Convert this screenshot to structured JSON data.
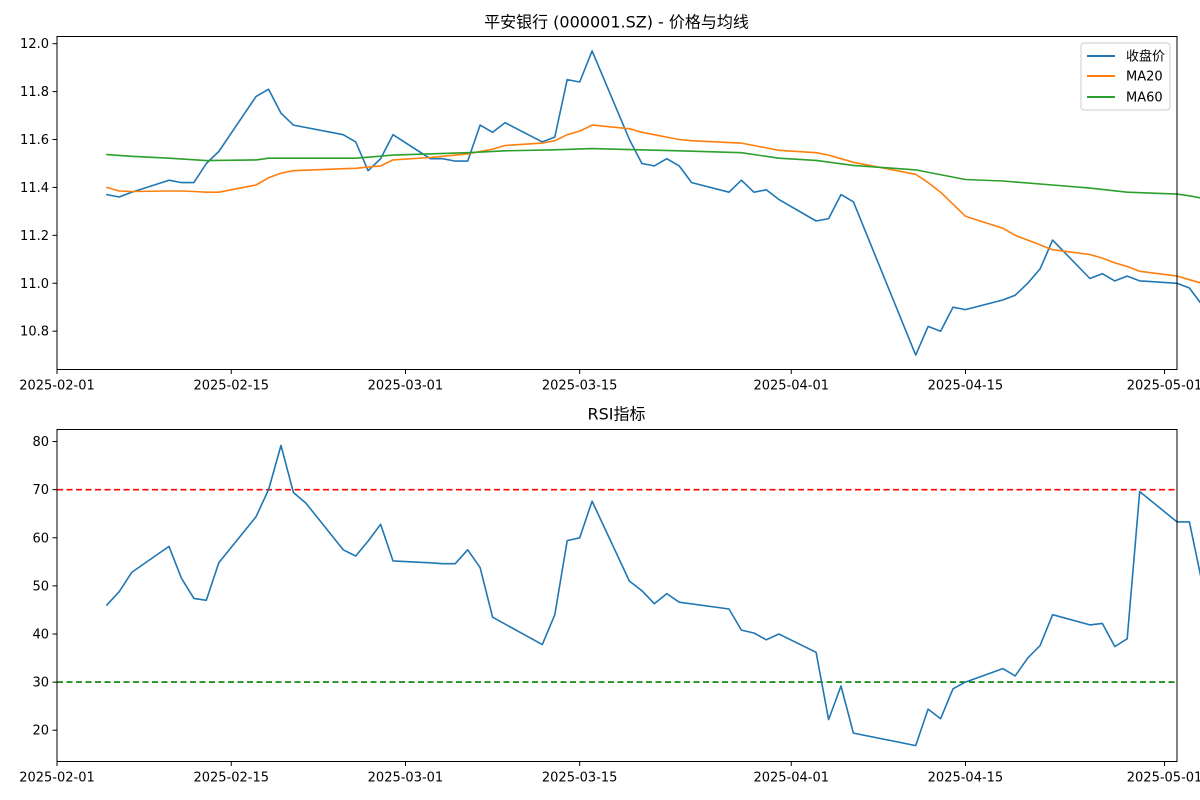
{
  "chart_data": [
    {
      "type": "line",
      "title": "平安银行 (000001.SZ) - 价格与均线",
      "xlabel": "",
      "ylabel": "",
      "x_axis_type": "date",
      "xlim": [
        "2025-02-01",
        "2025-05-02"
      ],
      "ylim": [
        10.64,
        12.03
      ],
      "x_ticks": [
        "2025-02-01",
        "2025-02-15",
        "2025-03-01",
        "2025-03-15",
        "2025-04-01",
        "2025-04-15",
        "2025-05-01"
      ],
      "y_ticks": [
        10.8,
        11.0,
        11.2,
        11.4,
        11.6,
        11.8,
        12.0
      ],
      "y_tick_labels": [
        "10.8",
        "11.0",
        "11.2",
        "11.4",
        "11.6",
        "11.8",
        "12.0"
      ],
      "grid": false,
      "legend_position": "top-right",
      "series": [
        {
          "name": "收盘价",
          "color": "#1f77b4",
          "points": [
            [
              "2025-02-05",
              11.37
            ],
            [
              "2025-02-06",
              11.36
            ],
            [
              "2025-02-07",
              11.38
            ],
            [
              "2025-02-10",
              11.43
            ],
            [
              "2025-02-11",
              11.42
            ],
            [
              "2025-02-12",
              11.42
            ],
            [
              "2025-02-13",
              11.5
            ],
            [
              "2025-02-14",
              11.55
            ],
            [
              "2025-02-17",
              11.78
            ],
            [
              "2025-02-18",
              11.81
            ],
            [
              "2025-02-19",
              11.71
            ],
            [
              "2025-02-20",
              11.66
            ],
            [
              "2025-02-21",
              11.65
            ],
            [
              "2025-02-24",
              11.62
            ],
            [
              "2025-02-25",
              11.59
            ],
            [
              "2025-02-26",
              11.47
            ],
            [
              "2025-02-27",
              11.52
            ],
            [
              "2025-02-28",
              11.62
            ],
            [
              "2025-03-03",
              11.52
            ],
            [
              "2025-03-04",
              11.52
            ],
            [
              "2025-03-05",
              11.51
            ],
            [
              "2025-03-06",
              11.51
            ],
            [
              "2025-03-07",
              11.66
            ],
            [
              "2025-03-08",
              11.63
            ],
            [
              "2025-03-09",
              11.67
            ],
            [
              "2025-03-12",
              11.59
            ],
            [
              "2025-03-13",
              11.61
            ],
            [
              "2025-03-14",
              11.85
            ],
            [
              "2025-03-15",
              11.84
            ],
            [
              "2025-03-16",
              11.97
            ],
            [
              "2025-03-19",
              11.6
            ],
            [
              "2025-03-20",
              11.5
            ],
            [
              "2025-03-21",
              11.49
            ],
            [
              "2025-03-22",
              11.52
            ],
            [
              "2025-03-23",
              11.49
            ],
            [
              "2025-03-24",
              11.42
            ],
            [
              "2025-03-27",
              11.38
            ],
            [
              "2025-03-28",
              11.43
            ],
            [
              "2025-03-29",
              11.38
            ],
            [
              "2025-03-30",
              11.39
            ],
            [
              "2025-03-31",
              11.35
            ],
            [
              "2025-04-03",
              11.26
            ],
            [
              "2025-04-04",
              11.27
            ],
            [
              "2025-04-05",
              11.37
            ],
            [
              "2025-04-06",
              11.34
            ],
            [
              "2025-04-11",
              10.7
            ],
            [
              "2025-04-12",
              10.82
            ],
            [
              "2025-04-13",
              10.8
            ],
            [
              "2025-04-14",
              10.9
            ],
            [
              "2025-04-15",
              10.89
            ],
            [
              "2025-04-18",
              10.93
            ],
            [
              "2025-04-19",
              10.95
            ],
            [
              "2025-04-20",
              11.0
            ],
            [
              "2025-04-21",
              11.06
            ],
            [
              "2025-04-22",
              11.18
            ],
            [
              "2025-04-25",
              11.02
            ],
            [
              "2025-04-26",
              11.04
            ],
            [
              "2025-04-27",
              11.01
            ],
            [
              "2025-04-28",
              11.03
            ],
            [
              "2025-04-29",
              11.01
            ],
            [
              "2025-05-02",
              11.0
            ],
            [
              "2025-05-03",
              10.98
            ],
            [
              "2025-05-04",
              10.91
            ]
          ]
        },
        {
          "name": "MA20",
          "color": "#ff7f0e",
          "points": [
            [
              "2025-02-05",
              11.4
            ],
            [
              "2025-02-06",
              11.385
            ],
            [
              "2025-02-07",
              11.383
            ],
            [
              "2025-02-10",
              11.385
            ],
            [
              "2025-02-11",
              11.385
            ],
            [
              "2025-02-12",
              11.383
            ],
            [
              "2025-02-13",
              11.38
            ],
            [
              "2025-02-14",
              11.38
            ],
            [
              "2025-02-17",
              11.41
            ],
            [
              "2025-02-18",
              11.44
            ],
            [
              "2025-02-19",
              11.46
            ],
            [
              "2025-02-20",
              11.47
            ],
            [
              "2025-02-21",
              11.472
            ],
            [
              "2025-02-24",
              11.478
            ],
            [
              "2025-02-25",
              11.48
            ],
            [
              "2025-02-26",
              11.485
            ],
            [
              "2025-02-27",
              11.49
            ],
            [
              "2025-02-28",
              11.515
            ],
            [
              "2025-03-03",
              11.525
            ],
            [
              "2025-03-04",
              11.53
            ],
            [
              "2025-03-05",
              11.535
            ],
            [
              "2025-03-06",
              11.54
            ],
            [
              "2025-03-07",
              11.55
            ],
            [
              "2025-03-08",
              11.56
            ],
            [
              "2025-03-09",
              11.575
            ],
            [
              "2025-03-12",
              11.585
            ],
            [
              "2025-03-13",
              11.595
            ],
            [
              "2025-03-14",
              11.62
            ],
            [
              "2025-03-15",
              11.635
            ],
            [
              "2025-03-16",
              11.66
            ],
            [
              "2025-03-19",
              11.645
            ],
            [
              "2025-03-20",
              11.63
            ],
            [
              "2025-03-21",
              11.62
            ],
            [
              "2025-03-22",
              11.61
            ],
            [
              "2025-03-23",
              11.6
            ],
            [
              "2025-03-24",
              11.595
            ],
            [
              "2025-03-27",
              11.587
            ],
            [
              "2025-03-28",
              11.585
            ],
            [
              "2025-03-29",
              11.575
            ],
            [
              "2025-03-30",
              11.565
            ],
            [
              "2025-03-31",
              11.555
            ],
            [
              "2025-04-03",
              11.545
            ],
            [
              "2025-04-04",
              11.535
            ],
            [
              "2025-04-05",
              11.52
            ],
            [
              "2025-04-06",
              11.505
            ],
            [
              "2025-04-11",
              11.455
            ],
            [
              "2025-04-12",
              11.42
            ],
            [
              "2025-04-13",
              11.38
            ],
            [
              "2025-04-14",
              11.33
            ],
            [
              "2025-04-15",
              11.28
            ],
            [
              "2025-04-18",
              11.23
            ],
            [
              "2025-04-19",
              11.2
            ],
            [
              "2025-04-20",
              11.18
            ],
            [
              "2025-04-21",
              11.16
            ],
            [
              "2025-04-22",
              11.14
            ],
            [
              "2025-04-25",
              11.12
            ],
            [
              "2025-04-26",
              11.105
            ],
            [
              "2025-04-27",
              11.085
            ],
            [
              "2025-04-28",
              11.07
            ],
            [
              "2025-04-29",
              11.05
            ],
            [
              "2025-05-02",
              11.03
            ],
            [
              "2025-05-03",
              11.015
            ],
            [
              "2025-05-04",
              11.0
            ]
          ]
        },
        {
          "name": "MA60",
          "color": "#2ca02c",
          "points": [
            [
              "2025-02-05",
              11.537
            ],
            [
              "2025-02-07",
              11.53
            ],
            [
              "2025-02-10",
              11.522
            ],
            [
              "2025-02-13",
              11.512
            ],
            [
              "2025-02-17",
              11.515
            ],
            [
              "2025-02-18",
              11.522
            ],
            [
              "2025-02-25",
              11.522
            ],
            [
              "2025-02-28",
              11.535
            ],
            [
              "2025-03-06",
              11.545
            ],
            [
              "2025-03-09",
              11.553
            ],
            [
              "2025-03-13",
              11.557
            ],
            [
              "2025-03-16",
              11.562
            ],
            [
              "2025-03-19",
              11.558
            ],
            [
              "2025-03-23",
              11.553
            ],
            [
              "2025-03-28",
              11.545
            ],
            [
              "2025-03-31",
              11.522
            ],
            [
              "2025-04-03",
              11.513
            ],
            [
              "2025-04-06",
              11.492
            ],
            [
              "2025-04-11",
              11.473
            ],
            [
              "2025-04-15",
              11.433
            ],
            [
              "2025-04-18",
              11.427
            ],
            [
              "2025-04-22",
              11.41
            ],
            [
              "2025-04-25",
              11.397
            ],
            [
              "2025-04-28",
              11.38
            ],
            [
              "2025-05-02",
              11.372
            ],
            [
              "2025-05-03",
              11.365
            ],
            [
              "2025-05-04",
              11.355
            ]
          ]
        }
      ],
      "legend": [
        "收盘价",
        "MA20",
        "MA60"
      ]
    },
    {
      "type": "line",
      "title": "RSI指标",
      "xlabel": "",
      "ylabel": "",
      "x_axis_type": "date",
      "xlim": [
        "2025-02-01",
        "2025-05-02"
      ],
      "ylim": [
        13.5,
        82.5
      ],
      "x_ticks": [
        "2025-02-01",
        "2025-02-15",
        "2025-03-01",
        "2025-03-15",
        "2025-04-01",
        "2025-04-15",
        "2025-05-01"
      ],
      "y_ticks": [
        20,
        30,
        40,
        50,
        60,
        70,
        80
      ],
      "y_tick_labels": [
        "20",
        "30",
        "40",
        "50",
        "60",
        "70",
        "80"
      ],
      "grid": false,
      "reference_lines": [
        {
          "y": 70,
          "color": "#ff0000",
          "style": "dashed"
        },
        {
          "y": 30,
          "color": "#008000",
          "style": "dashed"
        }
      ],
      "series": [
        {
          "name": "",
          "color": "#1f77b4",
          "points": [
            [
              "2025-02-05",
              46.0
            ],
            [
              "2025-02-06",
              48.8
            ],
            [
              "2025-02-07",
              52.8
            ],
            [
              "2025-02-10",
              58.2
            ],
            [
              "2025-02-11",
              51.6
            ],
            [
              "2025-02-12",
              47.4
            ],
            [
              "2025-02-13",
              47.0
            ],
            [
              "2025-02-14",
              54.8
            ],
            [
              "2025-02-17",
              64.4
            ],
            [
              "2025-02-18",
              70.0
            ],
            [
              "2025-02-19",
              79.2
            ],
            [
              "2025-02-20",
              69.4
            ],
            [
              "2025-02-21",
              67.2
            ],
            [
              "2025-02-24",
              57.5
            ],
            [
              "2025-02-25",
              56.2
            ],
            [
              "2025-02-26",
              59.3
            ],
            [
              "2025-02-27",
              62.8
            ],
            [
              "2025-02-28",
              55.2
            ],
            [
              "2025-03-03",
              54.8
            ],
            [
              "2025-03-04",
              54.6
            ],
            [
              "2025-03-05",
              54.6
            ],
            [
              "2025-03-06",
              57.5
            ],
            [
              "2025-03-07",
              53.8
            ],
            [
              "2025-03-08",
              43.5
            ],
            [
              "2025-03-12",
              37.8
            ],
            [
              "2025-03-13",
              44.0
            ],
            [
              "2025-03-14",
              59.4
            ],
            [
              "2025-03-15",
              60.0
            ],
            [
              "2025-03-16",
              67.6
            ],
            [
              "2025-03-19",
              51.0
            ],
            [
              "2025-03-20",
              49.0
            ],
            [
              "2025-03-21",
              46.3
            ],
            [
              "2025-03-22",
              48.4
            ],
            [
              "2025-03-23",
              46.6
            ],
            [
              "2025-03-27",
              45.2
            ],
            [
              "2025-03-28",
              40.8
            ],
            [
              "2025-03-29",
              40.2
            ],
            [
              "2025-03-30",
              38.8
            ],
            [
              "2025-03-31",
              40.0
            ],
            [
              "2025-04-03",
              36.2
            ],
            [
              "2025-04-04",
              22.2
            ],
            [
              "2025-04-05",
              29.2
            ],
            [
              "2025-04-06",
              19.4
            ],
            [
              "2025-04-11",
              16.8
            ],
            [
              "2025-04-12",
              24.4
            ],
            [
              "2025-04-13",
              22.4
            ],
            [
              "2025-04-14",
              28.6
            ],
            [
              "2025-04-15",
              30.0
            ],
            [
              "2025-04-18",
              32.8
            ],
            [
              "2025-04-19",
              31.3
            ],
            [
              "2025-04-20",
              35.0
            ],
            [
              "2025-04-21",
              37.6
            ],
            [
              "2025-04-22",
              44.0
            ],
            [
              "2025-04-25",
              41.9
            ],
            [
              "2025-04-26",
              42.2
            ],
            [
              "2025-04-27",
              37.4
            ],
            [
              "2025-04-28",
              39.0
            ],
            [
              "2025-04-29",
              69.6
            ],
            [
              "2025-05-02",
              63.3
            ],
            [
              "2025-05-03",
              63.3
            ],
            [
              "2025-05-04",
              50.8
            ]
          ]
        }
      ]
    }
  ]
}
